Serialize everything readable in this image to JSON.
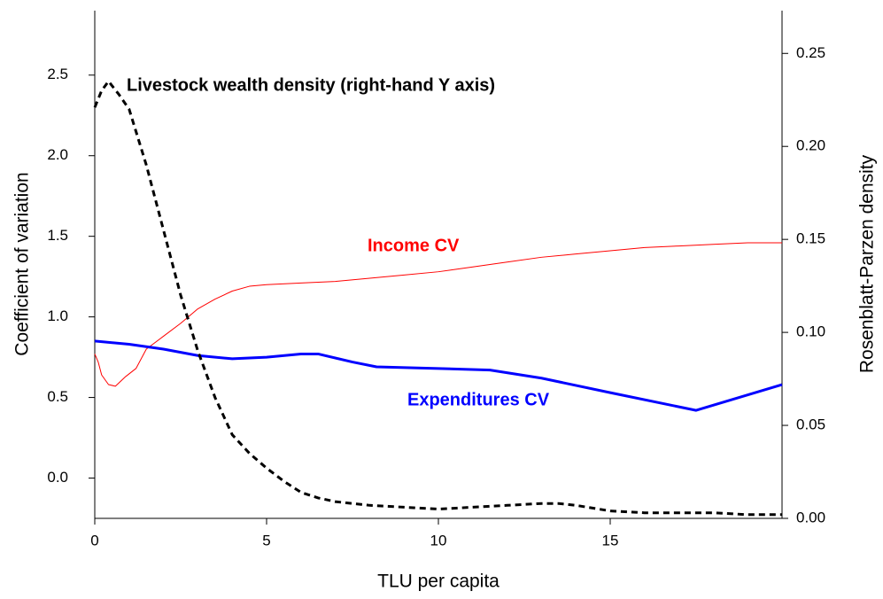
{
  "chart_data": {
    "type": "line",
    "xlabel": "TLU per capita",
    "ylabel": "Coefficient of variation",
    "y2label": "Rosenblatt-Parzen density",
    "annotations": [
      "Livestock wealth density (right-hand Y axis)",
      "Income CV",
      "Expenditures CV"
    ],
    "xlim": [
      0,
      20
    ],
    "xticks": [
      0,
      5,
      10,
      15
    ],
    "ylim": [
      -0.25,
      2.9
    ],
    "yticks": [
      {
        "value": 0,
        "label": "0.0"
      },
      0.5,
      {
        "value": 1,
        "label": "1.0"
      },
      1.5,
      {
        "value": 2,
        "label": "2.0"
      },
      2.5
    ],
    "y2lim": [
      0,
      0.273
    ],
    "y2ticks": [
      {
        "value": 0,
        "label": "0.00"
      },
      0.05,
      {
        "value": 0.1,
        "label": "0.10"
      },
      0.15,
      {
        "value": 0.2,
        "label": "0.20"
      },
      0.25
    ],
    "series": [
      {
        "name": "Income CV",
        "color": "#ff0000",
        "width": 1,
        "x": [
          0,
          0.1,
          0.2,
          0.4,
          0.6,
          0.9,
          1.2,
          1.5,
          2,
          2.5,
          3,
          3.5,
          4,
          4.5,
          5,
          6,
          7,
          8,
          9,
          10,
          11,
          12,
          13,
          14,
          15,
          16,
          17,
          18,
          19,
          20
        ],
        "values": [
          0.77,
          0.72,
          0.64,
          0.58,
          0.57,
          0.63,
          0.68,
          0.8,
          0.88,
          0.96,
          1.05,
          1.11,
          1.16,
          1.19,
          1.2,
          1.21,
          1.22,
          1.24,
          1.26,
          1.28,
          1.31,
          1.34,
          1.37,
          1.39,
          1.41,
          1.43,
          1.44,
          1.45,
          1.46,
          1.46
        ]
      },
      {
        "name": "Expenditures CV",
        "color": "#0000ff",
        "width": 3,
        "x": [
          0,
          1,
          2,
          3,
          4,
          5,
          6,
          6.5,
          7.5,
          8.2,
          10,
          11.5,
          13,
          15,
          17.5,
          20
        ],
        "values": [
          0.85,
          0.83,
          0.8,
          0.76,
          0.74,
          0.75,
          0.77,
          0.77,
          0.72,
          0.69,
          0.68,
          0.67,
          0.62,
          0.53,
          0.42,
          0.58
        ]
      },
      {
        "name": "Livestock wealth density",
        "color": "#000000",
        "width": 3,
        "dashed": true,
        "axis": "y2",
        "x": [
          0,
          0.2,
          0.4,
          0.7,
          1,
          1.5,
          2,
          2.5,
          3,
          3.5,
          4,
          4.5,
          5,
          5.5,
          6,
          6.5,
          7,
          8,
          9,
          10,
          11,
          12,
          13,
          13.5,
          14,
          15,
          16,
          17,
          18,
          19,
          20
        ],
        "values": [
          0.221,
          0.23,
          0.235,
          0.228,
          0.22,
          0.19,
          0.155,
          0.12,
          0.09,
          0.065,
          0.045,
          0.035,
          0.027,
          0.02,
          0.014,
          0.011,
          0.009,
          0.007,
          0.006,
          0.005,
          0.006,
          0.007,
          0.008,
          0.008,
          0.007,
          0.004,
          0.003,
          0.003,
          0.003,
          0.002,
          0.002
        ]
      }
    ]
  }
}
